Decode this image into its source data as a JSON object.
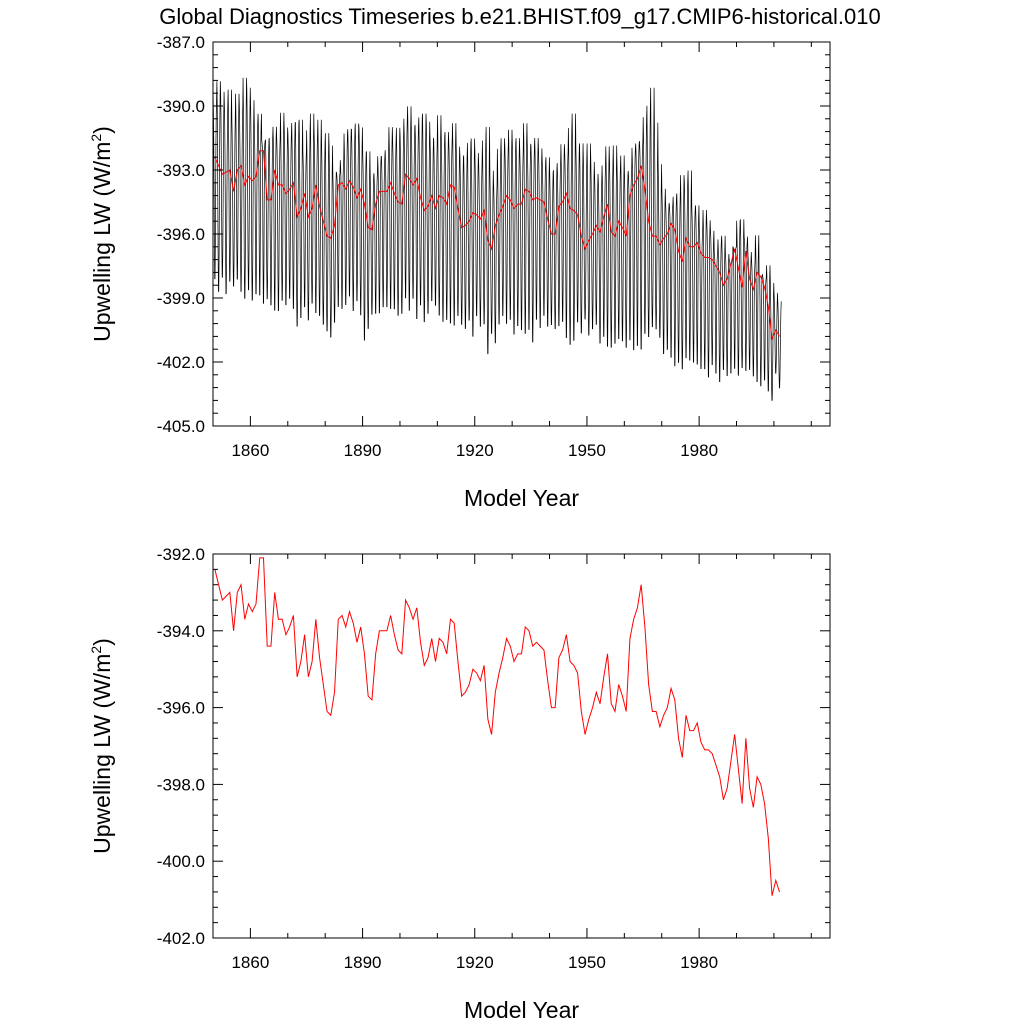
{
  "title": "Global Diagnostics Timeseries b.e21.BHIST.f09_g17.CMIP6-historical.010",
  "colors": {
    "monthly": "#000000",
    "annual": "#ff0000"
  },
  "chart_data": [
    {
      "type": "line",
      "ylabel": "Upwelling LW (W/m²)",
      "ylabel_main": "Upwelling LW (W/m",
      "ylabel_sup": "2",
      "ylabel_tail": ")",
      "xlabel": "Model Year",
      "xlim": [
        1850,
        2015
      ],
      "ylim": [
        -405.0,
        -387.0
      ],
      "x_ticks": [
        1860,
        1890,
        1920,
        1950,
        1980
      ],
      "x_tick_labels": [
        "1860",
        "1890",
        "1920",
        "1950",
        "1980"
      ],
      "y_ticks": [
        -387.0,
        -390.0,
        -393.0,
        -396.0,
        -399.0,
        -402.0,
        -405.0
      ],
      "y_tick_labels": [
        "-387.0",
        "-390.0",
        "-393.0",
        "-396.0",
        "-399.0",
        "-402.0",
        "-405.0"
      ],
      "series": [
        {
          "kind": "monthly",
          "x": [
            1850,
            2015
          ],
          "annual_mean": "series_annual",
          "seasonal_amplitude": 2.6,
          "annual_peak_max": [
            -389.5,
            -388.7,
            -389.2,
            -389.8,
            -389.1,
            -390.4,
            -389.3,
            -389.9,
            -388.5,
            -389.0,
            -389.6,
            -390.7,
            -390.3,
            -391.6,
            -391.5,
            -391.4,
            -390.9,
            -391.4,
            -390.2,
            -390.9,
            -391.2,
            -390.7,
            -390.6,
            -390.5,
            -392.1,
            -391.0,
            -390.2,
            -391.2,
            -390.5,
            -391.6,
            -391.1,
            -391.7,
            -393.0,
            -393.1,
            -392.5,
            -391.2,
            -391.0,
            -391.0,
            -390.7,
            -390.9,
            -392.1,
            -392.0,
            -393.2,
            -393.1,
            -392.3,
            -392.3,
            -392.0,
            -390.9,
            -391.5,
            -390.9,
            -391.3,
            -390.5,
            -389.9,
            -390.9,
            -390.8,
            -390.4,
            -390.2,
            -390.6,
            -391.4,
            -391.5,
            -390.3,
            -391.3,
            -391.1,
            -391.5,
            -390.7,
            -391.8,
            -392.3,
            -392.2,
            -391.6,
            -391.4,
            -392.1,
            -392.5,
            -391.5,
            -390.8,
            -392.9,
            -393.6,
            -391.9,
            -391.4,
            -391.8,
            -391.0,
            -391.6,
            -391.4,
            -392.0,
            -390.7,
            -391.7,
            -391.8,
            -391.4,
            -391.9,
            -392.5,
            -392.3,
            -393.0,
            -392.9,
            -392.6,
            -391.7,
            -392.0,
            -390.9,
            -390.2,
            -391.8,
            -391.6,
            -392.3,
            -391.6,
            -392.5,
            -393.1,
            -393.4,
            -392.7,
            -391.8,
            -392.5,
            -391.7,
            -392.7,
            -392.2,
            -393.1,
            -393.0,
            -391.9,
            -391.7,
            -391.6,
            -390.4,
            -389.8,
            -388.9,
            -390.6,
            -392.6,
            -393.8,
            -394.5,
            -394.6,
            -394.2,
            -394.0,
            -393.1,
            -393.4,
            -392.9,
            -394.7,
            -394.6,
            -395.7,
            -394.8,
            -395.3,
            -395.8,
            -396.8,
            -396.2,
            -396.0,
            -396.9,
            -397.2,
            -396.6,
            -395.3,
            -395.2,
            -396.1,
            -396.8,
            -397.2,
            -396.0,
            -397.9,
            -398.0,
            -397.4,
            -398.2,
            -398.7,
            -399.1,
            -399.7,
            -400.0,
            -400.2,
            -400.8
          ],
          "annual_trough_min": [
            -398.3,
            -398.9,
            -398.2,
            -399.0,
            -398.4,
            -398.6,
            -398.3,
            -398.9,
            -399.2,
            -398.8,
            -399.3,
            -399.0,
            -399.1,
            -399.5,
            -399.2,
            -399.5,
            -399.8,
            -399.8,
            -399.3,
            -399.5,
            -399.2,
            -399.7,
            -400.5,
            -400.1,
            -399.6,
            -400.2,
            -399.4,
            -399.9,
            -400.0,
            -400.4,
            -400.7,
            -401.0,
            -400.3,
            -399.6,
            -399.7,
            -399.5,
            -399.1,
            -399.8,
            -399.3,
            -400.0,
            -401.2,
            -400.6,
            -399.9,
            -399.9,
            -399.9,
            -399.6,
            -399.6,
            -399.7,
            -399.7,
            -400.0,
            -399.9,
            -399.2,
            -399.8,
            -399.2,
            -400.2,
            -399.5,
            -400.3,
            -399.9,
            -399.3,
            -399.5,
            -400.0,
            -400.3,
            -400.2,
            -400.4,
            -400.5,
            -400.0,
            -400.4,
            -400.6,
            -400.2,
            -401.0,
            -400.0,
            -400.5,
            -400.4,
            -401.8,
            -400.8,
            -401.3,
            -400.4,
            -400.0,
            -400.4,
            -400.2,
            -400.9,
            -400.5,
            -400.7,
            -400.9,
            -400.7,
            -401.3,
            -400.2,
            -400.6,
            -400.0,
            -400.5,
            -400.4,
            -400.6,
            -400.5,
            -400.3,
            -401.1,
            -401.4,
            -401.2,
            -400.3,
            -400.8,
            -400.1,
            -400.9,
            -400.6,
            -400.4,
            -401.3,
            -401.0,
            -401.5,
            -401.5,
            -401.3,
            -401.1,
            -401.2,
            -401.5,
            -401.2,
            -401.7,
            -401.5,
            -401.7,
            -400.9,
            -401.0,
            -400.5,
            -400.6,
            -401.0,
            -401.8,
            -401.6,
            -402.0,
            -402.4,
            -402.2,
            -402.5,
            -402.0,
            -402.1,
            -402.2,
            -402.3,
            -402.5,
            -402.5,
            -402.9,
            -402.3,
            -402.7,
            -403.1,
            -402.5,
            -402.8,
            -402.7,
            -402.5,
            -402.8,
            -402.4,
            -402.6,
            -402.5,
            -402.8,
            -403.1,
            -403.3,
            -403.0,
            -403.5,
            -403.9,
            -402.6,
            -403.3,
            -404.0,
            -404.3,
            -404.2,
            -404.9,
            -404.5,
            -404.8
          ]
        },
        {
          "kind": "annual",
          "id": "series_annual"
        }
      ]
    },
    {
      "type": "line",
      "ylabel": "Upwelling LW (W/m²)",
      "ylabel_main": "Upwelling LW (W/m",
      "ylabel_sup": "2",
      "ylabel_tail": ")",
      "xlabel": "Model Year",
      "xlim": [
        1850,
        2015
      ],
      "ylim": [
        -402.0,
        -392.0
      ],
      "x_ticks": [
        1860,
        1890,
        1920,
        1950,
        1980
      ],
      "x_tick_labels": [
        "1860",
        "1890",
        "1920",
        "1950",
        "1980"
      ],
      "y_ticks": [
        -392.0,
        -394.0,
        -396.0,
        -398.0,
        -400.0,
        -402.0
      ],
      "y_tick_labels": [
        "-392.0",
        "-394.0",
        "-396.0",
        "-398.0",
        "-400.0",
        "-402.0"
      ],
      "series": [
        {
          "kind": "annual",
          "id": "series_annual",
          "x_start": 1850,
          "x_step": 1,
          "values": [
            -392.4,
            -392.8,
            -393.2,
            -393.1,
            -393.0,
            -394.0,
            -393.0,
            -392.8,
            -393.7,
            -393.3,
            -393.5,
            -393.3,
            -392.1,
            -392.1,
            -394.4,
            -394.4,
            -393.0,
            -393.7,
            -393.7,
            -394.1,
            -393.9,
            -393.6,
            -395.2,
            -394.8,
            -394.1,
            -395.2,
            -394.8,
            -393.7,
            -394.7,
            -395.4,
            -396.1,
            -396.2,
            -395.6,
            -393.7,
            -393.6,
            -393.9,
            -393.5,
            -393.8,
            -394.3,
            -393.9,
            -394.6,
            -395.7,
            -395.8,
            -394.6,
            -394.0,
            -394.0,
            -394.0,
            -393.6,
            -394.1,
            -394.5,
            -394.6,
            -393.2,
            -393.4,
            -393.7,
            -393.4,
            -394.3,
            -394.9,
            -394.7,
            -394.2,
            -394.8,
            -394.2,
            -394.3,
            -394.6,
            -393.7,
            -393.8,
            -394.8,
            -395.7,
            -395.6,
            -395.4,
            -395.0,
            -395.1,
            -395.3,
            -394.9,
            -396.3,
            -396.7,
            -395.6,
            -395.1,
            -394.7,
            -394.2,
            -394.4,
            -394.8,
            -394.6,
            -394.6,
            -393.9,
            -394.0,
            -394.4,
            -394.3,
            -394.4,
            -394.5,
            -395.3,
            -396.0,
            -396.0,
            -394.7,
            -394.5,
            -394.1,
            -394.8,
            -394.9,
            -395.1,
            -396.1,
            -396.7,
            -396.3,
            -396.0,
            -395.6,
            -395.9,
            -395.2,
            -394.6,
            -395.9,
            -396.1,
            -395.4,
            -395.7,
            -396.1,
            -394.2,
            -393.7,
            -393.4,
            -392.8,
            -393.9,
            -395.4,
            -396.1,
            -396.1,
            -396.5,
            -396.2,
            -396.0,
            -395.5,
            -395.8,
            -396.8,
            -397.3,
            -396.2,
            -396.6,
            -396.6,
            -396.4,
            -396.9,
            -397.1,
            -397.1,
            -397.2,
            -397.5,
            -397.8,
            -398.4,
            -398.1,
            -397.4,
            -396.7,
            -397.6,
            -398.5,
            -396.8,
            -398.1,
            -398.6,
            -397.8,
            -398.0,
            -398.5,
            -399.4,
            -400.9,
            -400.5,
            -400.8
          ]
        }
      ]
    }
  ]
}
